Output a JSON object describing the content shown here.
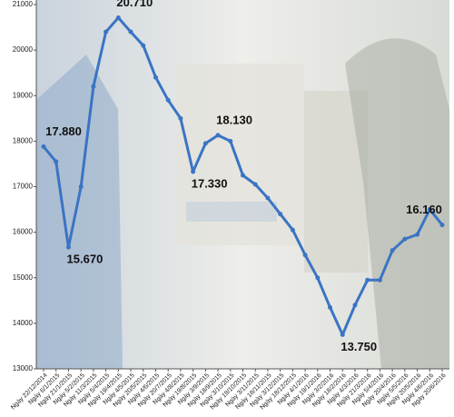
{
  "chart_data": {
    "type": "line",
    "categories": [
      "Ngày 22/12/2014",
      "Ngày 6/1/2015",
      "Ngày 21/1/2015",
      "Ngày 5/2/2015",
      "Ngày 11/3/2015",
      "Ngày 5/4/2015",
      "Ngày 19/4/2015",
      "Ngày 4/5/2015",
      "Ngày 20/5/2015",
      "Ngày 4/6/2015",
      "Ngày 20/7/2015",
      "Ngày 4/8/2015",
      "Ngày 19/8/2015",
      "Ngày 3/9/2015",
      "Ngày 18/9/2015",
      "Ngày 3/10/2015",
      "Ngày 19/10/2015",
      "Ngày 3/11/2015",
      "Ngày 18/11/2015",
      "Ngày 3/12/2015",
      "Ngày 18/12/2015",
      "Ngày 4/1/2016",
      "Ngày 19/1/2016",
      "Ngày 3/2/2016",
      "Ngày 18/2/2016",
      "Ngày 4/3/2016",
      "Ngày 21/3/2016",
      "Ngày 5/4/2016",
      "Ngày 20/4/2016",
      "Ngày 5/5/2016",
      "Ngày 20/5/2016",
      "Ngày 4/6/2016",
      "Ngày 20/6/2016"
    ],
    "values": [
      17880,
      17550,
      15670,
      17000,
      19200,
      20400,
      20710,
      20400,
      20100,
      19400,
      18900,
      18500,
      17330,
      17950,
      18130,
      18000,
      17250,
      17050,
      16750,
      16400,
      16050,
      15500,
      15000,
      14350,
      13750,
      14400,
      14950,
      14950,
      15600,
      15850,
      15950,
      16500,
      16160
    ],
    "value_labels": [
      "17.880",
      null,
      "15.670",
      null,
      null,
      null,
      "20.710",
      null,
      null,
      null,
      null,
      null,
      "17.330",
      null,
      "18.130",
      null,
      null,
      null,
      null,
      null,
      null,
      null,
      null,
      null,
      "13.750",
      null,
      null,
      null,
      null,
      null,
      null,
      null,
      "16.160"
    ],
    "color": "#3a74c4",
    "ylim": [
      13000,
      21000
    ],
    "yticks": [
      13000,
      14000,
      15000,
      16000,
      17000,
      18000,
      19000,
      20000,
      21000
    ]
  }
}
